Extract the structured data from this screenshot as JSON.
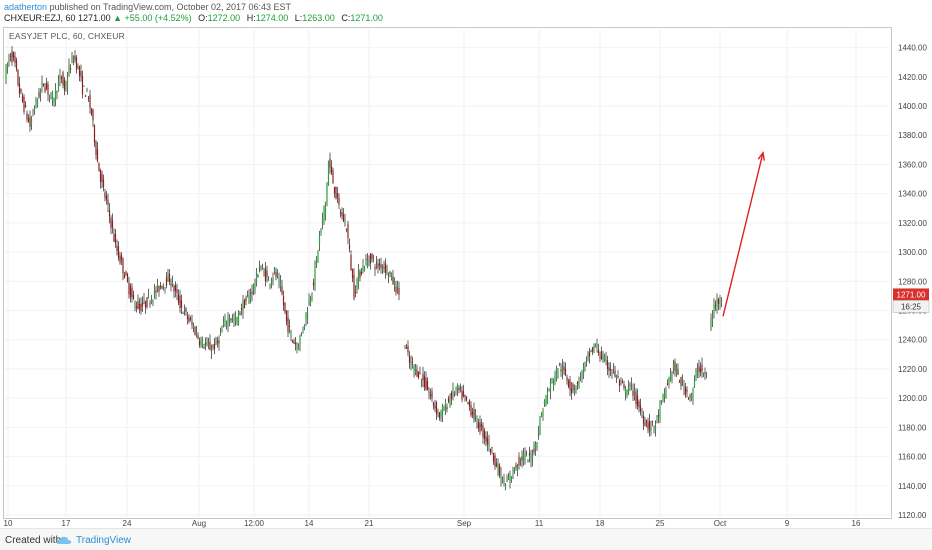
{
  "header": {
    "author": "adatherton",
    "published": "published on TradingView.com, October 02, 2017 06:43 EST",
    "symbol_interval": "CHXEUR:EZJ, 60",
    "last": "1271.00",
    "change": "+55.00 (+4.52%)",
    "open_label": "O:",
    "open": "1272.00",
    "high_label": "H:",
    "high": "1274.00",
    "low_label": "L:",
    "low": "1263.00",
    "close_label": "C:",
    "close": "1271.00"
  },
  "chart_label": "EASYJET PLC, 60, CHXEUR",
  "footer": {
    "created_with": "Created with",
    "brand": "TradingView"
  },
  "colors": {
    "up": "#2e9e3e",
    "down": "#8b1d1d",
    "wick": "#222222",
    "arrow": "#e02020",
    "price_tag": "#d9302a",
    "grid": "#f2f2f2"
  },
  "chart_data": {
    "type": "candlestick",
    "title": "EASYJET PLC, 60, CHXEUR",
    "ylim": [
      1120,
      1450
    ],
    "y_ticks": [
      1120,
      1140,
      1160,
      1180,
      1200,
      1220,
      1240,
      1260,
      1280,
      1300,
      1320,
      1340,
      1360,
      1380,
      1400,
      1420,
      1440
    ],
    "x_ticks": [
      "10",
      "17",
      "24",
      "Aug",
      "12:00",
      "14",
      "21",
      "Sep",
      "11",
      "18",
      "25",
      "Oct",
      "9",
      "16"
    ],
    "price_tag": "1271.00",
    "time_tag": "16:25",
    "grid": true,
    "series_segments": [
      [
        [
          0,
          1420
        ],
        [
          4,
          1436
        ],
        [
          7,
          1428
        ],
        [
          10,
          1410
        ],
        [
          14,
          1396
        ],
        [
          17,
          1386
        ],
        [
          20,
          1400
        ],
        [
          23,
          1408
        ],
        [
          26,
          1416
        ],
        [
          29,
          1410
        ],
        [
          32,
          1404
        ],
        [
          35,
          1413
        ],
        [
          38,
          1420
        ],
        [
          40,
          1410
        ],
        [
          43,
          1425
        ],
        [
          46,
          1434
        ],
        [
          49,
          1426
        ],
        [
          52,
          1412
        ],
        [
          55,
          1408
        ],
        [
          58,
          1395
        ],
        [
          60,
          1378
        ],
        [
          62,
          1362
        ],
        [
          65,
          1346
        ],
        [
          68,
          1334
        ],
        [
          71,
          1320
        ],
        [
          74,
          1304
        ],
        [
          78,
          1292
        ],
        [
          82,
          1278
        ],
        [
          86,
          1266
        ],
        [
          90,
          1262
        ],
        [
          95,
          1266
        ],
        [
          100,
          1272
        ],
        [
          105,
          1278
        ],
        [
          110,
          1282
        ],
        [
          114,
          1272
        ],
        [
          118,
          1262
        ],
        [
          122,
          1255
        ],
        [
          126,
          1248
        ],
        [
          130,
          1240
        ],
        [
          134,
          1236
        ],
        [
          138,
          1234
        ],
        [
          142,
          1238
        ],
        [
          146,
          1250
        ],
        [
          150,
          1256
        ],
        [
          154,
          1252
        ],
        [
          158,
          1262
        ],
        [
          162,
          1268
        ],
        [
          166,
          1276
        ],
        [
          170,
          1290
        ],
        [
          173,
          1286
        ],
        [
          176,
          1280
        ],
        [
          180,
          1286
        ],
        [
          184,
          1276
        ],
        [
          188,
          1252
        ],
        [
          192,
          1240
        ],
        [
          195,
          1236
        ],
        [
          198,
          1244
        ],
        [
          202,
          1262
        ],
        [
          206,
          1280
        ],
        [
          210,
          1310
        ],
        [
          214,
          1334
        ],
        [
          216,
          1362
        ],
        [
          219,
          1348
        ],
        [
          222,
          1334
        ],
        [
          225,
          1324
        ],
        [
          228,
          1318
        ],
        [
          231,
          1290
        ],
        [
          233,
          1272
        ],
        [
          236,
          1284
        ],
        [
          240,
          1292
        ],
        [
          244,
          1296
        ],
        [
          248,
          1290
        ],
        [
          252,
          1292
        ],
        [
          256,
          1286
        ],
        [
          260,
          1278
        ],
        [
          263,
          1272
        ]
      ],
      [
        [
          266,
          1240
        ],
        [
          270,
          1224
        ],
        [
          274,
          1220
        ],
        [
          278,
          1214
        ],
        [
          282,
          1206
        ],
        [
          286,
          1196
        ],
        [
          290,
          1188
        ],
        [
          294,
          1194
        ],
        [
          298,
          1202
        ],
        [
          302,
          1206
        ],
        [
          306,
          1200
        ],
        [
          310,
          1194
        ],
        [
          314,
          1186
        ],
        [
          318,
          1178
        ],
        [
          322,
          1170
        ],
        [
          326,
          1160
        ],
        [
          330,
          1148
        ],
        [
          334,
          1140
        ],
        [
          338,
          1148
        ],
        [
          342,
          1156
        ],
        [
          346,
          1160
        ],
        [
          350,
          1158
        ],
        [
          354,
          1168
        ],
        [
          358,
          1190
        ],
        [
          362,
          1204
        ],
        [
          366,
          1214
        ],
        [
          370,
          1222
        ],
        [
          374,
          1216
        ],
        [
          378,
          1206
        ],
        [
          382,
          1210
        ],
        [
          386,
          1220
        ],
        [
          390,
          1230
        ],
        [
          394,
          1236
        ],
        [
          398,
          1228
        ],
        [
          402,
          1222
        ],
        [
          406,
          1218
        ],
        [
          410,
          1210
        ],
        [
          414,
          1204
        ],
        [
          418,
          1208
        ],
        [
          422,
          1196
        ],
        [
          426,
          1186
        ],
        [
          430,
          1180
        ],
        [
          434,
          1182
        ],
        [
          438,
          1196
        ],
        [
          442,
          1210
        ],
        [
          446,
          1222
        ],
        [
          450,
          1212
        ],
        [
          454,
          1206
        ],
        [
          458,
          1200
        ],
        [
          462,
          1222
        ],
        [
          465,
          1218
        ],
        [
          468,
          1214
        ]
      ],
      [
        [
          470,
          1248
        ],
        [
          473,
          1262
        ],
        [
          476,
          1268
        ],
        [
          478,
          1271
        ]
      ]
    ],
    "annotation_arrow": {
      "from": [
        478,
        1256
      ],
      "to": [
        498,
        1368
      ]
    }
  }
}
